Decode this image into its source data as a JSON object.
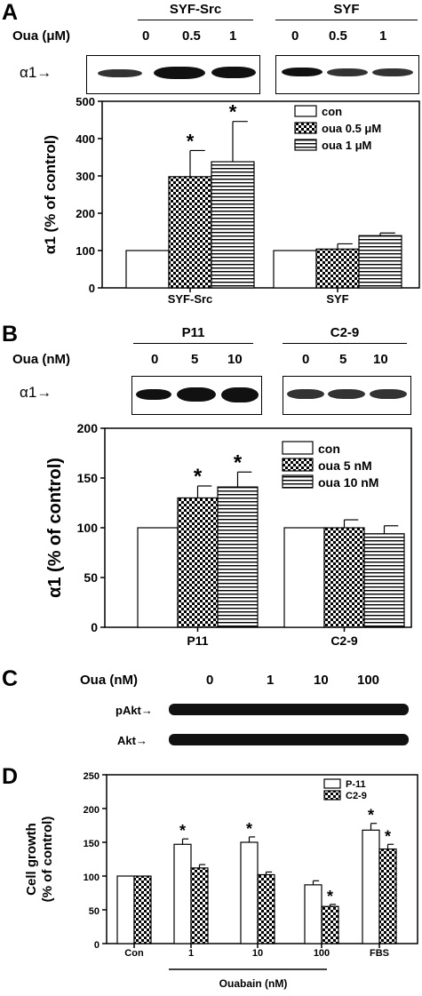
{
  "panelA": {
    "label": "A",
    "groups": [
      "SYF-Src",
      "SYF"
    ],
    "treatment_label": "Oua (μM)",
    "doses": [
      "0",
      "0.5",
      "1"
    ],
    "blot_label": "α1→",
    "chart_data": {
      "type": "bar",
      "categories": [
        "SYF-Src",
        "SYF"
      ],
      "ylabel": "α1 (% of control)",
      "ylim": [
        0,
        500
      ],
      "yticks": [
        0,
        100,
        200,
        300,
        400,
        500
      ],
      "series": [
        {
          "name": "con",
          "values": [
            100,
            100
          ],
          "errors": [
            0,
            0
          ],
          "sig": [
            "",
            ""
          ]
        },
        {
          "name": "oua 0.5 μM",
          "values": [
            298,
            104
          ],
          "errors": [
            70,
            14
          ],
          "sig": [
            "*",
            ""
          ]
        },
        {
          "name": "oua 1 μM",
          "values": [
            338,
            140
          ],
          "errors": [
            108,
            7
          ],
          "sig": [
            "*",
            ""
          ]
        }
      ],
      "legend": "top-right"
    }
  },
  "panelB": {
    "label": "B",
    "groups": [
      "P11",
      "C2-9"
    ],
    "treatment_label": "Oua (nM)",
    "doses": [
      "0",
      "5",
      "10"
    ],
    "blot_label": "α1→",
    "chart_data": {
      "type": "bar",
      "categories": [
        "P11",
        "C2-9"
      ],
      "ylabel": "α1 (% of control)",
      "ylim": [
        0,
        200
      ],
      "yticks": [
        0,
        50,
        100,
        150,
        200
      ],
      "series": [
        {
          "name": "con",
          "values": [
            100,
            100
          ],
          "errors": [
            0,
            0
          ],
          "sig": [
            "",
            ""
          ]
        },
        {
          "name": "oua 5 nM",
          "values": [
            130,
            100
          ],
          "errors": [
            12,
            8
          ],
          "sig": [
            "*",
            ""
          ]
        },
        {
          "name": "oua 10 nM",
          "values": [
            141,
            94
          ],
          "errors": [
            15,
            8
          ],
          "sig": [
            "*",
            ""
          ]
        }
      ],
      "legend": "top-right"
    }
  },
  "panelC": {
    "label": "C",
    "treatment_label": "Oua (nM)",
    "doses": [
      "0",
      "1",
      "10",
      "100"
    ],
    "rows": [
      "pAkt→",
      "Akt→"
    ]
  },
  "panelD": {
    "label": "D",
    "chart_data": {
      "type": "bar",
      "categories": [
        "Con",
        "1",
        "10",
        "100",
        "FBS"
      ],
      "ylabel_lines": [
        "Cell growth",
        "(% of control)"
      ],
      "xlabel": "Ouabain (nM)",
      "ylim": [
        0,
        250
      ],
      "yticks": [
        0,
        50,
        100,
        150,
        200,
        250
      ],
      "series": [
        {
          "name": "P-11",
          "values": [
            100,
            147,
            150,
            87,
            168
          ],
          "errors": [
            0,
            8,
            8,
            6,
            10
          ],
          "sig": [
            "",
            "*",
            "*",
            "",
            "*"
          ]
        },
        {
          "name": "C2-9",
          "values": [
            100,
            112,
            102,
            55,
            140
          ],
          "errors": [
            0,
            5,
            4,
            3,
            7
          ],
          "sig": [
            "",
            "",
            "",
            "*",
            "*"
          ]
        }
      ],
      "legend": "top-right"
    }
  }
}
